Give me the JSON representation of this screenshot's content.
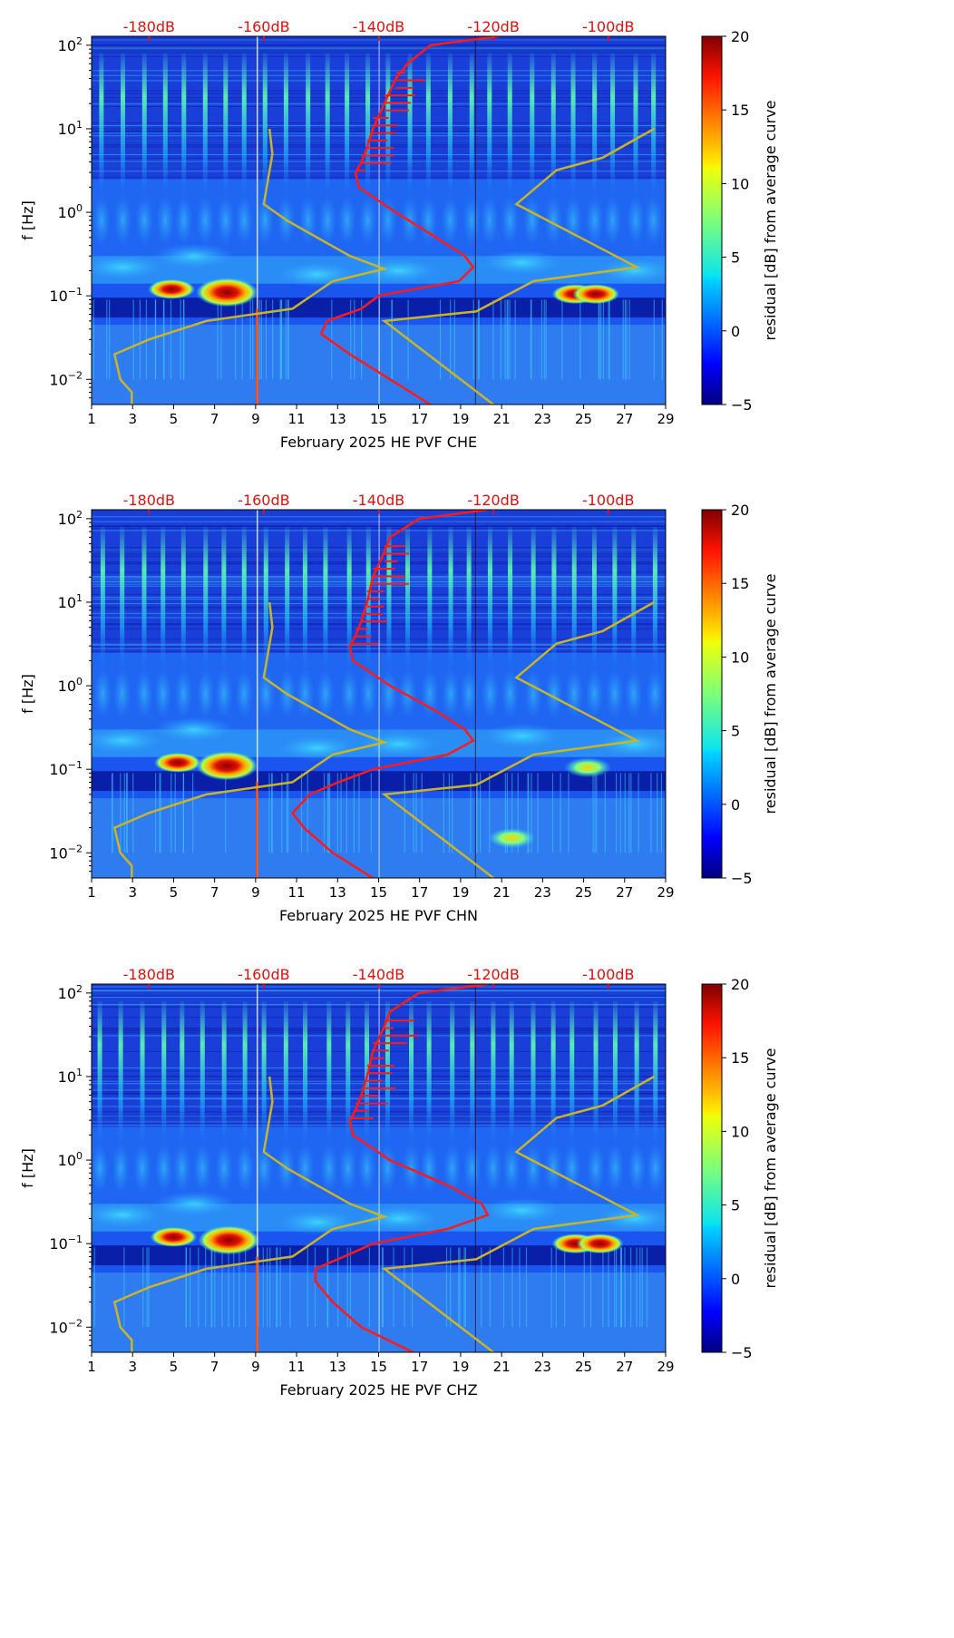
{
  "figure": {
    "description_colors": {
      "db_axis": "#e01010",
      "psd_curve": "#ff1a1a",
      "noise_model_curve": "#c8b428",
      "axis": "#000000"
    }
  },
  "colorbar": {
    "label": "residual [dB] from average curve",
    "range": [
      -5,
      20
    ],
    "ticks": [
      {
        "value": 20,
        "label": "20"
      },
      {
        "value": 15,
        "label": "15"
      },
      {
        "value": 10,
        "label": "10"
      },
      {
        "value": 5,
        "label": "5"
      },
      {
        "value": 0,
        "label": "0"
      },
      {
        "value": -5,
        "label": "−5"
      }
    ],
    "colormap": "jet"
  },
  "chart_data": [
    {
      "type": "heatmap",
      "channel": "CHE",
      "xlabel": "February 2025 HE PVF  CHE",
      "ylabel": "f [Hz]",
      "xlim": [
        1,
        29
      ],
      "ylim_hz": [
        0.005,
        128
      ],
      "x_ticks": [
        "1",
        "3",
        "5",
        "7",
        "9",
        "11",
        "13",
        "15",
        "17",
        "19",
        "21",
        "23",
        "25",
        "27",
        "29"
      ],
      "y_ticks": [
        {
          "base": "10",
          "exp": "2"
        },
        {
          "base": "10",
          "exp": "1"
        },
        {
          "base": "10",
          "exp": "0"
        },
        {
          "base": "10",
          "exp": "−1"
        },
        {
          "base": "10",
          "exp": "−2"
        }
      ],
      "top_db_ticks": [
        "-180dB",
        "-160dB",
        "-140dB",
        "-120dB",
        "-100dB"
      ],
      "top_db_range": [
        -190,
        -90
      ],
      "red_psd_curve_db": [
        {
          "f": 128,
          "db": -119
        },
        {
          "f": 100,
          "db": -131
        },
        {
          "f": 60,
          "db": -135
        },
        {
          "f": 40,
          "db": -137
        },
        {
          "f": 20,
          "db": -139
        },
        {
          "f": 10,
          "db": -141
        },
        {
          "f": 6,
          "db": -142
        },
        {
          "f": 4,
          "db": -143
        },
        {
          "f": 3,
          "db": -144
        },
        {
          "f": 2,
          "db": -143.5
        },
        {
          "f": 1,
          "db": -137
        },
        {
          "f": 0.5,
          "db": -130
        },
        {
          "f": 0.3,
          "db": -125
        },
        {
          "f": 0.22,
          "db": -123.5
        },
        {
          "f": 0.15,
          "db": -126
        },
        {
          "f": 0.1,
          "db": -140
        },
        {
          "f": 0.07,
          "db": -143
        },
        {
          "f": 0.05,
          "db": -149
        },
        {
          "f": 0.035,
          "db": -150
        },
        {
          "f": 0.02,
          "db": -145
        },
        {
          "f": 0.01,
          "db": -138
        },
        {
          "f": 0.005,
          "db": -131
        }
      ],
      "yellow_noise_model_db": [
        {
          "f": 10,
          "db": -159
        },
        {
          "f": 5,
          "db": -158.5
        },
        {
          "f": 1.25,
          "db": -160
        },
        {
          "f": 0.8,
          "db": -156
        },
        {
          "f": 0.3,
          "db": -145
        },
        {
          "f": 0.21,
          "db": -139
        },
        {
          "f": 0.15,
          "db": -148
        },
        {
          "f": 0.07,
          "db": -155
        },
        {
          "f": 0.05,
          "db": -170
        },
        {
          "f": 0.03,
          "db": -180
        },
        {
          "f": 0.02,
          "db": -186
        },
        {
          "f": 0.01,
          "db": -185
        },
        {
          "f": 0.007,
          "db": -183
        },
        {
          "f": 0.005,
          "db": -183
        },
        {
          "f": 0.005,
          "db": -120
        },
        {
          "f": 0.05,
          "db": -139
        },
        {
          "f": 0.065,
          "db": -123
        },
        {
          "f": 0.15,
          "db": -113
        },
        {
          "f": 0.22,
          "db": -95
        },
        {
          "f": 1.25,
          "db": -116
        },
        {
          "f": 3.2,
          "db": -109
        },
        {
          "f": 4.5,
          "db": -101
        },
        {
          "f": 10,
          "db": -92
        }
      ],
      "hotspots": [
        {
          "day": 4.9,
          "f": 0.12,
          "residual_db": 18
        },
        {
          "day": 7.6,
          "f": 0.11,
          "residual_db": 20
        },
        {
          "day": 24.6,
          "f": 0.105,
          "residual_db": 17
        },
        {
          "day": 25.6,
          "f": 0.105,
          "residual_db": 17
        }
      ]
    },
    {
      "type": "heatmap",
      "channel": "CHN",
      "xlabel": "February 2025 HE PVF  CHN",
      "ylabel": "f [Hz]",
      "xlim": [
        1,
        29
      ],
      "ylim_hz": [
        0.005,
        128
      ],
      "x_ticks": [
        "1",
        "3",
        "5",
        "7",
        "9",
        "11",
        "13",
        "15",
        "17",
        "19",
        "21",
        "23",
        "25",
        "27",
        "29"
      ],
      "y_ticks": [
        {
          "base": "10",
          "exp": "2"
        },
        {
          "base": "10",
          "exp": "1"
        },
        {
          "base": "10",
          "exp": "0"
        },
        {
          "base": "10",
          "exp": "−1"
        },
        {
          "base": "10",
          "exp": "−2"
        }
      ],
      "top_db_ticks": [
        "-180dB",
        "-160dB",
        "-140dB",
        "-120dB",
        "-100dB"
      ],
      "top_db_range": [
        -190,
        -90
      ],
      "red_psd_curve_db": [
        {
          "f": 128,
          "db": -121
        },
        {
          "f": 100,
          "db": -133
        },
        {
          "f": 60,
          "db": -138
        },
        {
          "f": 40,
          "db": -139
        },
        {
          "f": 20,
          "db": -141
        },
        {
          "f": 10,
          "db": -142
        },
        {
          "f": 6,
          "db": -143
        },
        {
          "f": 4,
          "db": -144
        },
        {
          "f": 3,
          "db": -145
        },
        {
          "f": 2,
          "db": -144.5
        },
        {
          "f": 1,
          "db": -138
        },
        {
          "f": 0.5,
          "db": -130
        },
        {
          "f": 0.3,
          "db": -125
        },
        {
          "f": 0.22,
          "db": -123.5
        },
        {
          "f": 0.15,
          "db": -128
        },
        {
          "f": 0.1,
          "db": -141
        },
        {
          "f": 0.07,
          "db": -147
        },
        {
          "f": 0.05,
          "db": -152
        },
        {
          "f": 0.03,
          "db": -155
        },
        {
          "f": 0.02,
          "db": -153
        },
        {
          "f": 0.01,
          "db": -148
        },
        {
          "f": 0.005,
          "db": -141
        }
      ],
      "yellow_noise_model_db": [
        {
          "f": 10,
          "db": -159
        },
        {
          "f": 5,
          "db": -158.5
        },
        {
          "f": 1.25,
          "db": -160
        },
        {
          "f": 0.8,
          "db": -156
        },
        {
          "f": 0.3,
          "db": -145
        },
        {
          "f": 0.21,
          "db": -139
        },
        {
          "f": 0.15,
          "db": -148
        },
        {
          "f": 0.07,
          "db": -155
        },
        {
          "f": 0.05,
          "db": -170
        },
        {
          "f": 0.03,
          "db": -180
        },
        {
          "f": 0.02,
          "db": -186
        },
        {
          "f": 0.01,
          "db": -185
        },
        {
          "f": 0.007,
          "db": -183
        },
        {
          "f": 0.005,
          "db": -183
        },
        {
          "f": 0.005,
          "db": -120
        },
        {
          "f": 0.05,
          "db": -139
        },
        {
          "f": 0.065,
          "db": -123
        },
        {
          "f": 0.15,
          "db": -113
        },
        {
          "f": 0.22,
          "db": -95
        },
        {
          "f": 1.25,
          "db": -116
        },
        {
          "f": 3.2,
          "db": -109
        },
        {
          "f": 4.5,
          "db": -101
        },
        {
          "f": 10,
          "db": -92
        }
      ],
      "hotspots": [
        {
          "day": 5.2,
          "f": 0.12,
          "residual_db": 18
        },
        {
          "day": 7.6,
          "f": 0.11,
          "residual_db": 20
        },
        {
          "day": 21.5,
          "f": 0.015,
          "residual_db": 12
        },
        {
          "day": 25.2,
          "f": 0.105,
          "residual_db": 12
        }
      ]
    },
    {
      "type": "heatmap",
      "channel": "CHZ",
      "xlabel": "February 2025 HE PVF  CHZ",
      "ylabel": "f [Hz]",
      "xlim": [
        1,
        29
      ],
      "ylim_hz": [
        0.005,
        128
      ],
      "x_ticks": [
        "1",
        "3",
        "5",
        "7",
        "9",
        "11",
        "13",
        "15",
        "17",
        "19",
        "21",
        "23",
        "25",
        "27",
        "29"
      ],
      "y_ticks": [
        {
          "base": "10",
          "exp": "2"
        },
        {
          "base": "10",
          "exp": "1"
        },
        {
          "base": "10",
          "exp": "0"
        },
        {
          "base": "10",
          "exp": "−1"
        },
        {
          "base": "10",
          "exp": "−2"
        }
      ],
      "top_db_ticks": [
        "-180dB",
        "-160dB",
        "-140dB",
        "-120dB",
        "-100dB"
      ],
      "top_db_range": [
        -190,
        -90
      ],
      "red_psd_curve_db": [
        {
          "f": 128,
          "db": -121
        },
        {
          "f": 100,
          "db": -133
        },
        {
          "f": 60,
          "db": -138
        },
        {
          "f": 40,
          "db": -139
        },
        {
          "f": 20,
          "db": -141
        },
        {
          "f": 10,
          "db": -142
        },
        {
          "f": 6,
          "db": -143
        },
        {
          "f": 4,
          "db": -144
        },
        {
          "f": 3,
          "db": -145
        },
        {
          "f": 2,
          "db": -144.5
        },
        {
          "f": 1,
          "db": -138
        },
        {
          "f": 0.5,
          "db": -128
        },
        {
          "f": 0.3,
          "db": -122
        },
        {
          "f": 0.22,
          "db": -121
        },
        {
          "f": 0.15,
          "db": -128
        },
        {
          "f": 0.1,
          "db": -141
        },
        {
          "f": 0.07,
          "db": -146
        },
        {
          "f": 0.05,
          "db": -151
        },
        {
          "f": 0.035,
          "db": -151
        },
        {
          "f": 0.02,
          "db": -148
        },
        {
          "f": 0.01,
          "db": -143
        },
        {
          "f": 0.005,
          "db": -134
        }
      ],
      "yellow_noise_model_db": [
        {
          "f": 10,
          "db": -159
        },
        {
          "f": 5,
          "db": -158.5
        },
        {
          "f": 1.25,
          "db": -160
        },
        {
          "f": 0.8,
          "db": -156
        },
        {
          "f": 0.3,
          "db": -145
        },
        {
          "f": 0.21,
          "db": -139
        },
        {
          "f": 0.15,
          "db": -148
        },
        {
          "f": 0.07,
          "db": -155
        },
        {
          "f": 0.05,
          "db": -170
        },
        {
          "f": 0.03,
          "db": -180
        },
        {
          "f": 0.02,
          "db": -186
        },
        {
          "f": 0.01,
          "db": -185
        },
        {
          "f": 0.007,
          "db": -183
        },
        {
          "f": 0.005,
          "db": -183
        },
        {
          "f": 0.005,
          "db": -120
        },
        {
          "f": 0.05,
          "db": -139
        },
        {
          "f": 0.065,
          "db": -123
        },
        {
          "f": 0.15,
          "db": -113
        },
        {
          "f": 0.22,
          "db": -95
        },
        {
          "f": 1.25,
          "db": -116
        },
        {
          "f": 3.2,
          "db": -109
        },
        {
          "f": 4.5,
          "db": -101
        },
        {
          "f": 10,
          "db": -92
        }
      ],
      "hotspots": [
        {
          "day": 5.0,
          "f": 0.12,
          "residual_db": 18
        },
        {
          "day": 7.7,
          "f": 0.11,
          "residual_db": 20
        },
        {
          "day": 24.6,
          "f": 0.1,
          "residual_db": 17
        },
        {
          "day": 25.8,
          "f": 0.1,
          "residual_db": 17
        }
      ]
    }
  ]
}
